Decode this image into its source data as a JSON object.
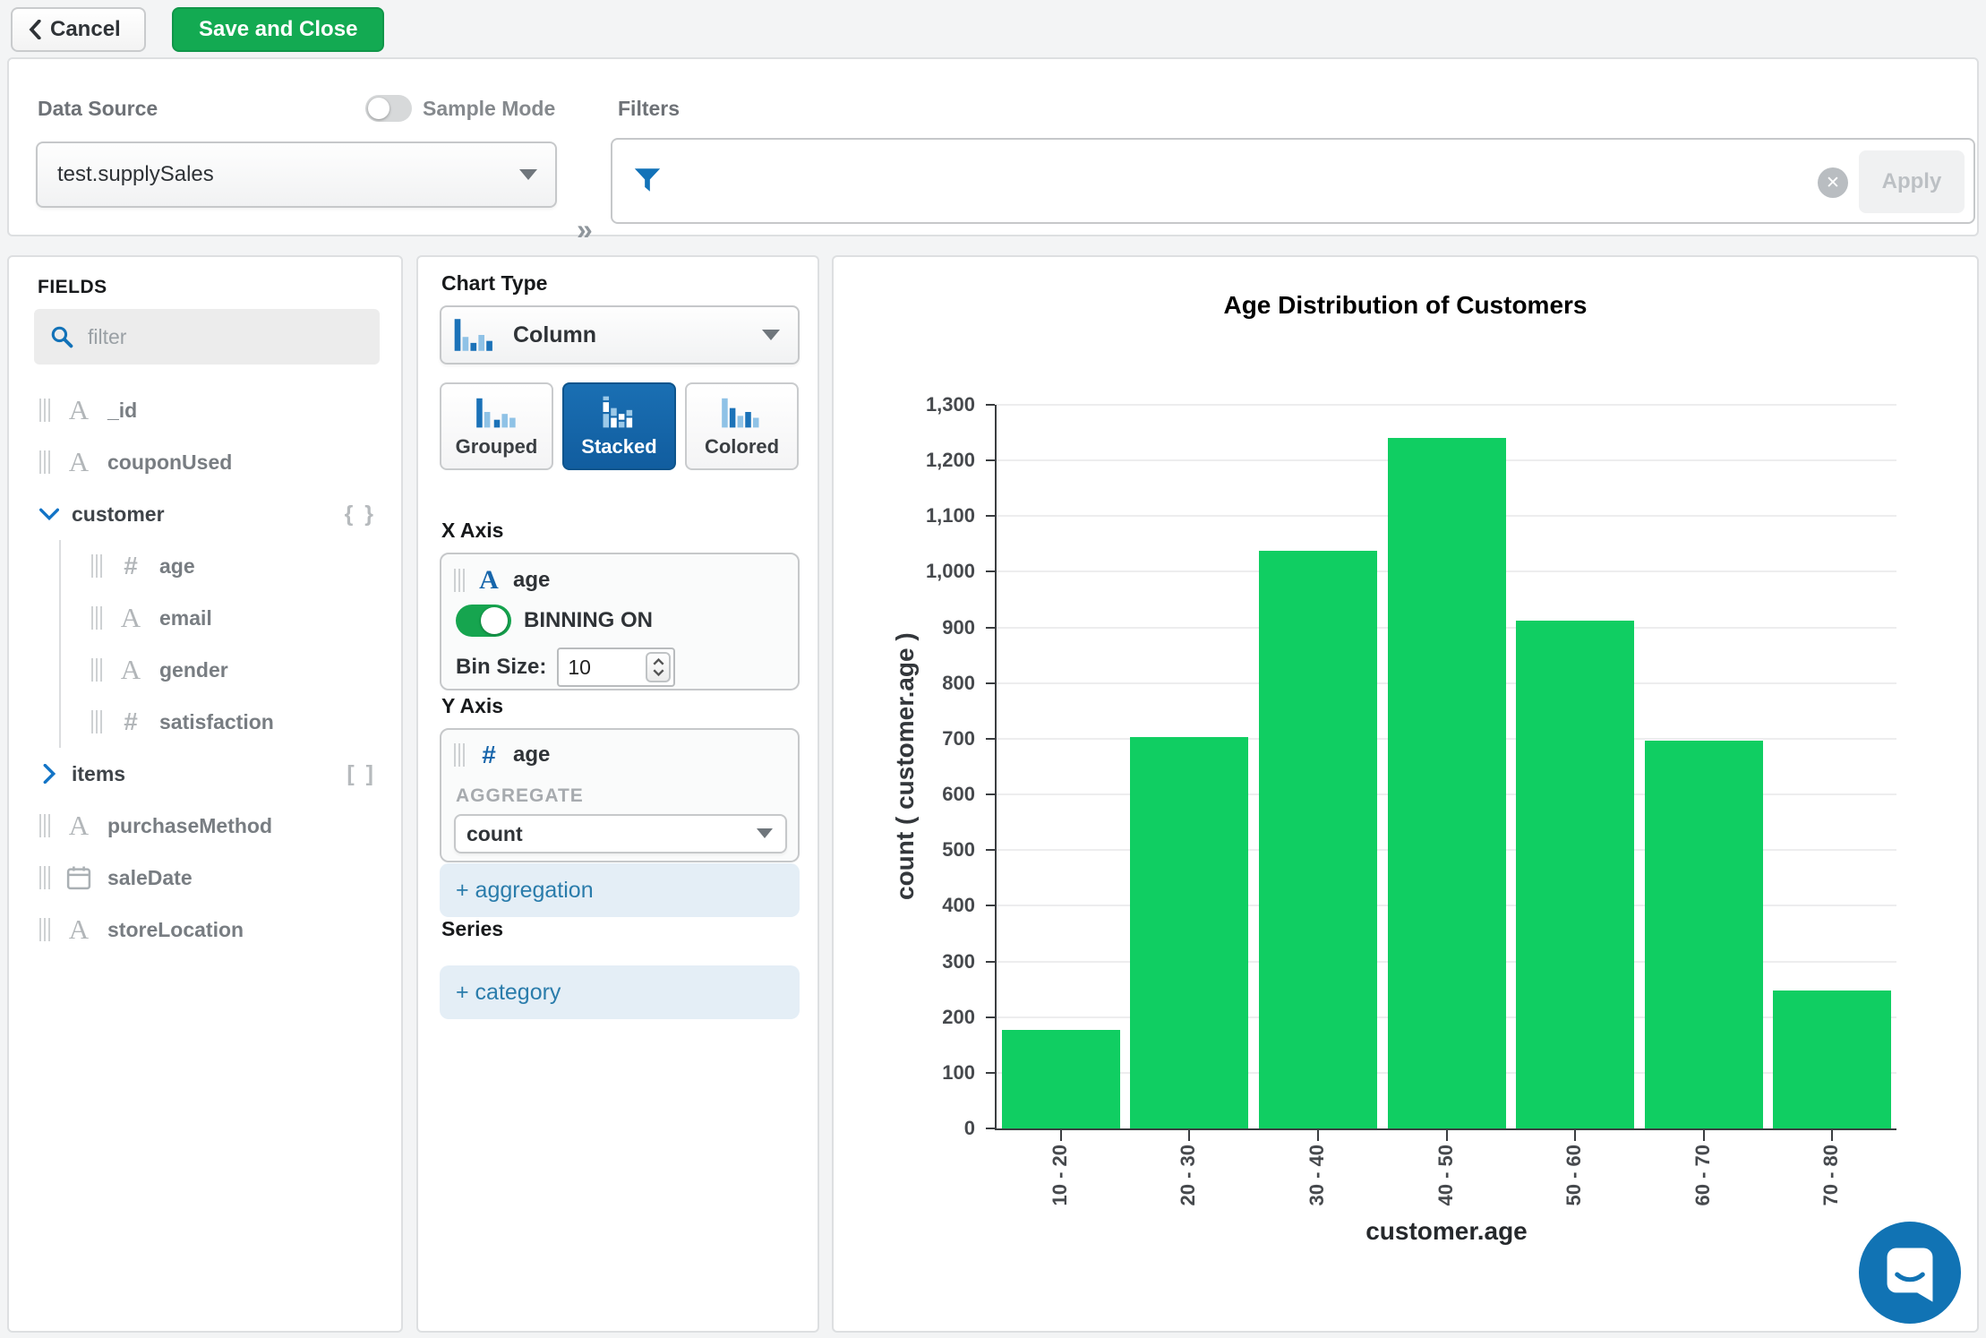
{
  "topbar": {
    "cancel_label": "Cancel",
    "save_label": "Save and Close"
  },
  "datasource_bar": {
    "data_source_label": "Data Source",
    "sample_mode_label": "Sample Mode",
    "sample_mode_on": false,
    "filters_label": "Filters",
    "selected_source": "test.supplySales",
    "apply_label": "Apply"
  },
  "fields_panel": {
    "title": "FIELDS",
    "filter_placeholder": "filter",
    "fields": [
      {
        "name": "_id",
        "type": "string",
        "indent": 0
      },
      {
        "name": "couponUsed",
        "type": "string",
        "indent": 0
      },
      {
        "name": "customer",
        "type": "object",
        "indent": 0,
        "expanded": true,
        "badge": "{ }"
      },
      {
        "name": "age",
        "type": "number",
        "indent": 1
      },
      {
        "name": "email",
        "type": "string",
        "indent": 1
      },
      {
        "name": "gender",
        "type": "string",
        "indent": 1
      },
      {
        "name": "satisfaction",
        "type": "number",
        "indent": 1
      },
      {
        "name": "items",
        "type": "array",
        "indent": 0,
        "expanded": false,
        "badge": "[ ]"
      },
      {
        "name": "purchaseMethod",
        "type": "string",
        "indent": 0
      },
      {
        "name": "saleDate",
        "type": "date",
        "indent": 0
      },
      {
        "name": "storeLocation",
        "type": "string",
        "indent": 0
      }
    ]
  },
  "encoding_panel": {
    "chart_type_label": "Chart Type",
    "chart_type_value": "Column",
    "variants": [
      {
        "label": "Grouped",
        "selected": false
      },
      {
        "label": "Stacked",
        "selected": true
      },
      {
        "label": "Colored",
        "selected": false
      }
    ],
    "x_axis": {
      "label": "X Axis",
      "field": "age",
      "field_type": "string",
      "binning_label": "BINNING ON",
      "binning_on": true,
      "bin_size_label": "Bin Size:",
      "bin_size_value": "10"
    },
    "y_axis": {
      "label": "Y Axis",
      "field": "age",
      "field_type": "number",
      "aggregate_label": "AGGREGATE",
      "aggregate_value": "count"
    },
    "add_aggregation_label": "+ aggregation",
    "series_label": "Series",
    "add_category_label": "+ category"
  },
  "chart_data": {
    "type": "bar",
    "title": "Age Distribution of Customers",
    "categories": [
      "10 - 20",
      "20 - 30",
      "30 - 40",
      "40 - 50",
      "50 - 60",
      "60 - 70",
      "70 - 80"
    ],
    "values": [
      177,
      703,
      1038,
      1240,
      912,
      696,
      247
    ],
    "xlabel": "customer.age",
    "ylabel": "count ( customer.age )",
    "ylim": [
      0,
      1300
    ],
    "ytick_step": 100,
    "grid": true,
    "legend": "none",
    "bar_color": "#10ce62"
  },
  "colors": {
    "accent_green": "#13aa52",
    "toggle_green": "#16a54f",
    "selected_blue": "#135fa0",
    "bar_green": "#10ce62",
    "link_blue": "#2a7cab",
    "icon_blue": "#1272b8"
  }
}
